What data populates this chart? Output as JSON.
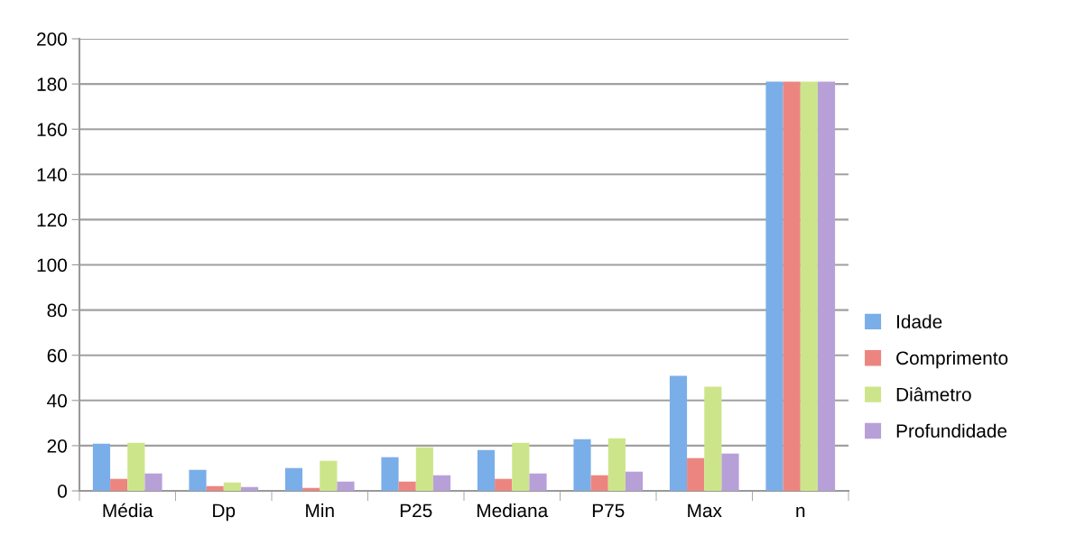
{
  "chart_data": {
    "type": "bar",
    "categories": [
      "Média",
      "Dp",
      "Min",
      "P25",
      "Mediana",
      "P75",
      "Max",
      "n"
    ],
    "series": [
      {
        "name": "Idade",
        "color": "#7aaee8",
        "values": [
          20.9,
          9.3,
          10.1,
          14.9,
          18.1,
          22.9,
          50.9,
          181
        ]
      },
      {
        "name": "Comprimento",
        "color": "#ec8580",
        "values": [
          5.3,
          2.1,
          1.3,
          4.1,
          5.3,
          6.9,
          14.5,
          181
        ]
      },
      {
        "name": "Diâmetro",
        "color": "#cde58a",
        "values": [
          21.3,
          3.7,
          13.3,
          19.3,
          21.3,
          23.3,
          46.1,
          181
        ]
      },
      {
        "name": "Profundidade",
        "color": "#b7a0d8",
        "values": [
          7.7,
          1.7,
          4.1,
          6.9,
          7.7,
          8.5,
          16.5,
          181
        ]
      }
    ],
    "ylim": [
      0,
      200
    ],
    "yticks": [
      0,
      20,
      40,
      60,
      80,
      100,
      120,
      140,
      160,
      180,
      200
    ],
    "grid": "y",
    "legend": "right"
  }
}
